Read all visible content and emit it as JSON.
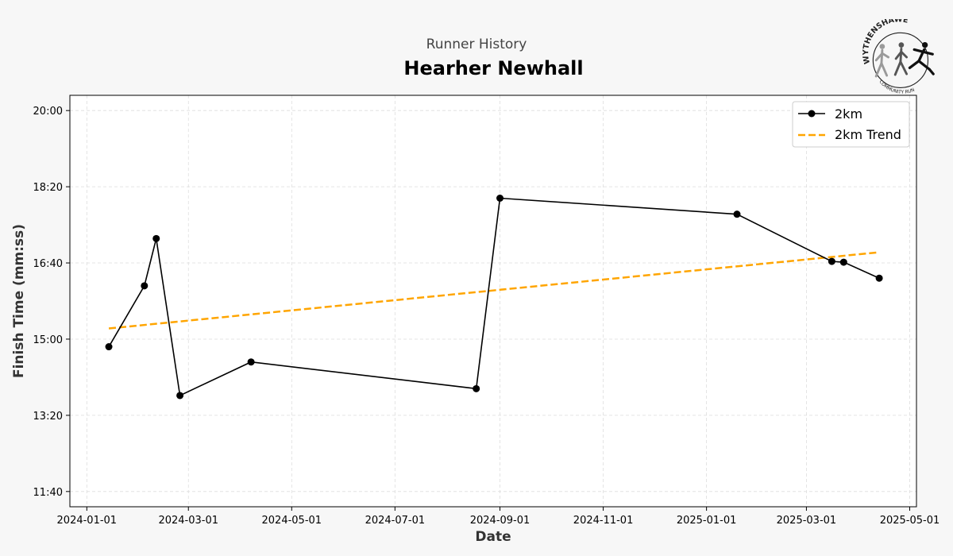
{
  "header": {
    "subtitle": "Runner History",
    "title": "Hearher Newhall"
  },
  "logo": {
    "top_text": "WYTHENSHAWE",
    "bottom_text": "COMMUNITY RUN"
  },
  "colors": {
    "background": "#f7f7f7",
    "plot_background": "#ffffff",
    "series": "#000000",
    "trend": "#ffa500",
    "grid": "#dddddd"
  },
  "chart_data": {
    "type": "line",
    "xlabel": "Date",
    "ylabel": "Finish Time (mm:ss)",
    "x_type": "date",
    "xlim": [
      "2023-12-22",
      "2025-05-05"
    ],
    "ylim": [
      "11:20",
      "20:20"
    ],
    "x_ticks": [
      "2024-01-01",
      "2024-03-01",
      "2024-05-01",
      "2024-07-01",
      "2024-09-01",
      "2024-11-01",
      "2025-01-01",
      "2025-03-01",
      "2025-05-01"
    ],
    "y_ticks": [
      "11:40",
      "13:20",
      "15:00",
      "16:40",
      "18:20",
      "20:00"
    ],
    "grid": true,
    "grid_style": "dashed",
    "legend_position": "top-right",
    "series": [
      {
        "name": "2km",
        "style": "solid-with-markers",
        "points": [
          {
            "x": "2024-01-14",
            "y": "14:50"
          },
          {
            "x": "2024-02-04",
            "y": "16:10"
          },
          {
            "x": "2024-02-11",
            "y": "17:12"
          },
          {
            "x": "2024-02-25",
            "y": "13:46"
          },
          {
            "x": "2024-04-07",
            "y": "14:30"
          },
          {
            "x": "2024-08-18",
            "y": "13:55"
          },
          {
            "x": "2024-09-01",
            "y": "18:05"
          },
          {
            "x": "2025-01-19",
            "y": "17:44"
          },
          {
            "x": "2025-03-16",
            "y": "16:42"
          },
          {
            "x": "2025-03-23",
            "y": "16:41"
          },
          {
            "x": "2025-04-13",
            "y": "16:20"
          }
        ]
      },
      {
        "name": "2km Trend",
        "style": "dashed",
        "points": [
          {
            "x": "2024-01-14",
            "y": "15:14"
          },
          {
            "x": "2025-04-13",
            "y": "16:54"
          }
        ]
      }
    ]
  }
}
